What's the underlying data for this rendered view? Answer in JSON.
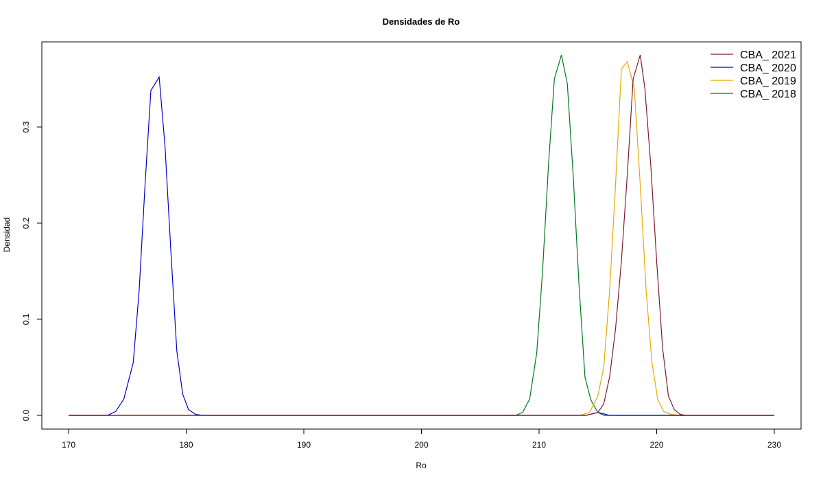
{
  "chart_data": {
    "type": "line",
    "title": "Densidades de Ro",
    "xlabel": "Ro",
    "ylabel": "Densidad",
    "xlim": [
      170,
      230
    ],
    "ylim": [
      0,
      0.375
    ],
    "xticks": [
      170,
      180,
      190,
      200,
      210,
      220,
      230
    ],
    "yticks": [
      0.0,
      0.1,
      0.2,
      0.3
    ],
    "xtick_labels": [
      "170",
      "180",
      "190",
      "200",
      "210",
      "220",
      "230"
    ],
    "ytick_labels": [
      "0.0",
      "0.1",
      "0.2",
      "0.3"
    ],
    "grid": false,
    "legend_position": "top-right",
    "series": [
      {
        "name": "CBA_ 2021",
        "color": "#7B1A2E",
        "x": [
          170,
          214,
          215,
          215.5,
          216,
          216.5,
          217,
          217.5,
          218,
          218.6,
          219,
          219.5,
          220,
          220.5,
          221,
          221.5,
          222,
          222.5,
          223,
          230
        ],
        "y": [
          0,
          0,
          0.003,
          0.012,
          0.04,
          0.09,
          0.16,
          0.25,
          0.35,
          0.375,
          0.34,
          0.26,
          0.16,
          0.07,
          0.02,
          0.006,
          0.001,
          0,
          0,
          0
        ]
      },
      {
        "name": "CBA_ 2020",
        "color": "#0000CC",
        "x": [
          170,
          173.3,
          174,
          174.7,
          175.5,
          176,
          176.5,
          177,
          177.7,
          178.2,
          178.7,
          179.2,
          179.7,
          180.2,
          180.8,
          181.4,
          182,
          214,
          215,
          216,
          230
        ],
        "y": [
          0,
          0,
          0.004,
          0.017,
          0.055,
          0.13,
          0.24,
          0.338,
          0.352,
          0.28,
          0.17,
          0.067,
          0.022,
          0.006,
          0.001,
          0,
          0,
          0,
          0.003,
          0,
          0
        ]
      },
      {
        "name": "CBA_ 2019",
        "color": "#E6A800",
        "x": [
          170,
          213.5,
          214.3,
          215,
          215.5,
          216,
          216.5,
          217,
          217.5,
          218.1,
          218.6,
          219.1,
          219.6,
          220.1,
          220.6,
          221.2,
          222,
          230
        ],
        "y": [
          0,
          0,
          0.003,
          0.02,
          0.05,
          0.13,
          0.24,
          0.36,
          0.368,
          0.34,
          0.24,
          0.13,
          0.055,
          0.016,
          0.004,
          0.001,
          0,
          0
        ]
      },
      {
        "name": "CBA_ 2018",
        "color": "#00771F",
        "x": [
          170,
          208,
          208.6,
          209.2,
          209.8,
          210.3,
          210.8,
          211.3,
          211.9,
          212.4,
          212.9,
          213.4,
          213.9,
          214.4,
          215,
          215.5,
          216,
          230
        ],
        "y": [
          0,
          0,
          0.003,
          0.017,
          0.065,
          0.15,
          0.26,
          0.35,
          0.375,
          0.345,
          0.25,
          0.135,
          0.04,
          0.016,
          0.003,
          0,
          0,
          0
        ]
      }
    ]
  }
}
